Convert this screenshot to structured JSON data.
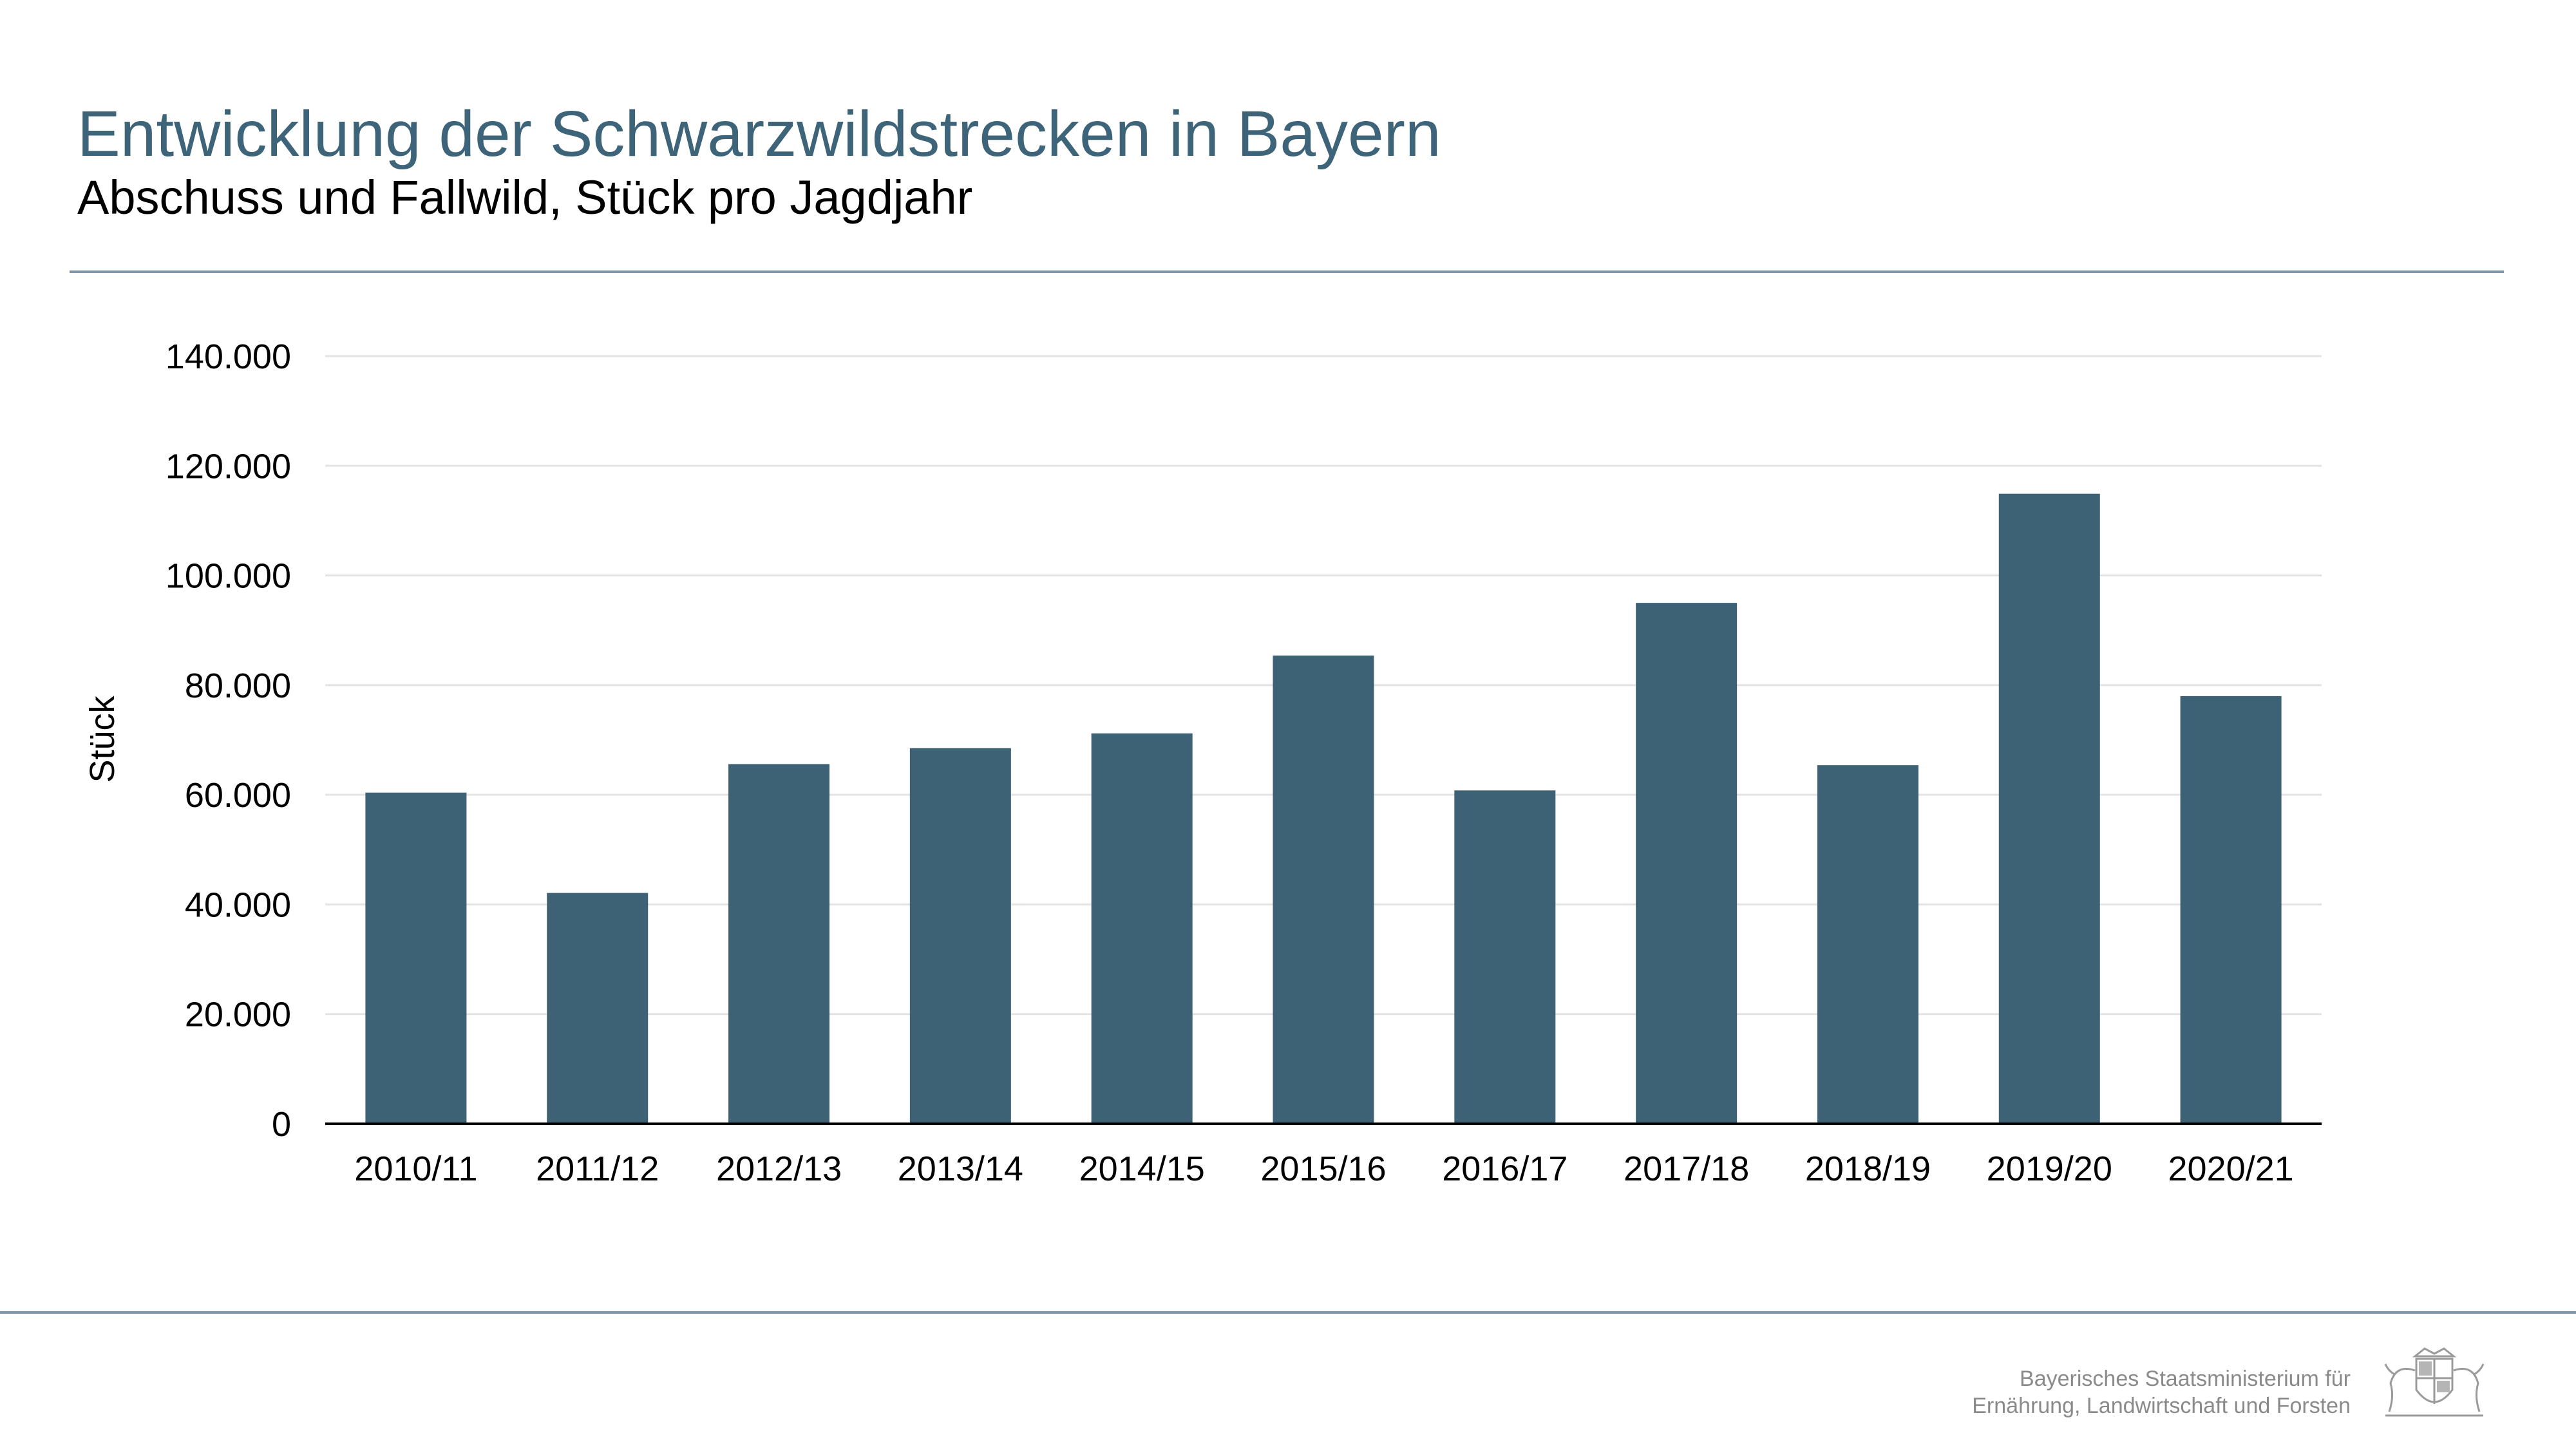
{
  "header": {
    "title": "Entwicklung der Schwarzwildstrecken in Bayern",
    "subtitle": "Abschuss und Fallwild, Stück pro Jagdjahr"
  },
  "chart_data": {
    "type": "bar",
    "categories": [
      "2010/11",
      "2011/12",
      "2012/13",
      "2013/14",
      "2014/15",
      "2015/16",
      "2016/17",
      "2017/18",
      "2018/19",
      "2019/20",
      "2020/21"
    ],
    "values": [
      60400,
      42100,
      65600,
      68500,
      71200,
      85400,
      60800,
      95000,
      65400,
      114900,
      78000
    ],
    "ylabel": "Stück",
    "xlabel": "",
    "ylim": [
      0,
      140000
    ],
    "yticks": [
      0,
      20000,
      40000,
      60000,
      80000,
      100000,
      120000,
      140000
    ],
    "ytick_labels": [
      "0",
      "20.000",
      "40.000",
      "60.000",
      "80.000",
      "100.000",
      "120.000",
      "140.000"
    ],
    "grid": true,
    "legend": "none",
    "bar_color": "#3d6175"
  },
  "footer": {
    "line1": "Bayerisches Staatsministerium für",
    "line2": "Ernährung, Landwirtschaft und Forsten"
  },
  "logo": {
    "name": "bavarian-coat-of-arms-icon"
  },
  "colors": {
    "title": "#3e6479",
    "bar": "#3d6175",
    "rule": "#7f97a6",
    "gridline": "#e3e3e3"
  }
}
